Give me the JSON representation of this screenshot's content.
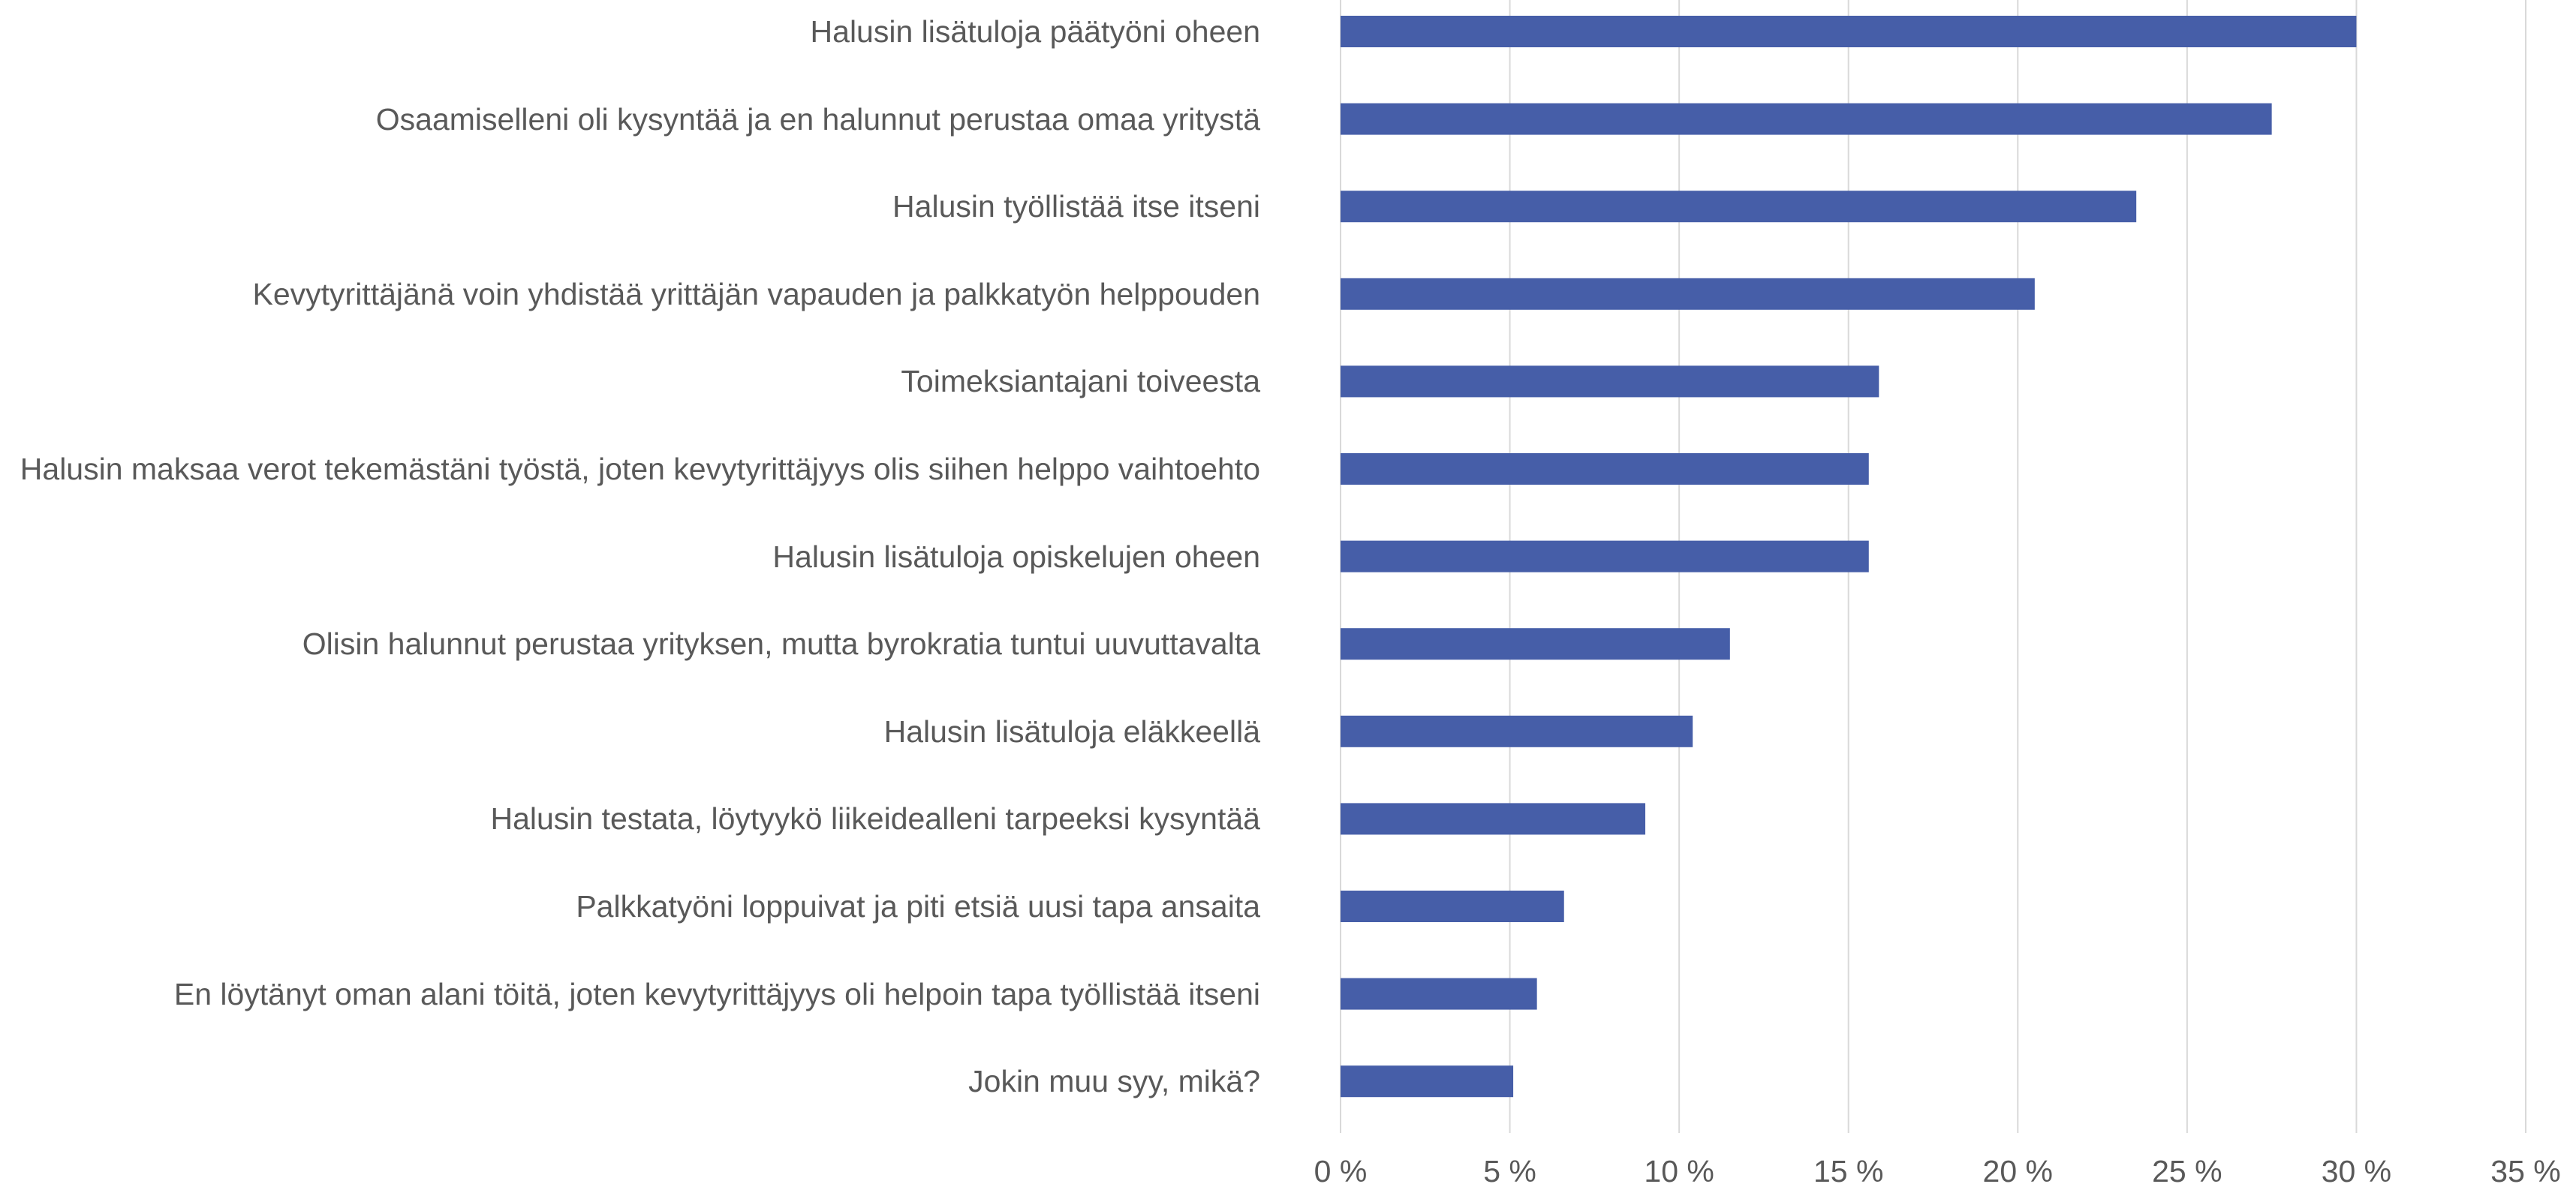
{
  "chart_data": {
    "type": "bar",
    "orientation": "horizontal",
    "categories": [
      "Halusin lisätuloja päätyöni oheen",
      "Osaamiselleni oli kysyntää ja en halunnut perustaa omaa yritystä",
      "Halusin työllistää itse itseni",
      "Kevytyrittäjänä voin yhdistää yrittäjän vapauden ja palkkatyön helppouden",
      "Toimeksiantajani toiveesta",
      "Halusin maksaa verot tekemästäni työstä, joten kevytyrittäjyys olis siihen helppo vaihtoehto",
      "Halusin lisätuloja opiskelujen oheen",
      "Olisin halunnut perustaa yrityksen, mutta byrokratia tuntui uuvuttavalta",
      "Halusin lisätuloja eläkkeellä",
      "Halusin testata, löytyykö liikeidealleni tarpeeksi kysyntää",
      "Palkkatyöni loppuivat ja piti etsiä uusi tapa ansaita",
      "En löytänyt oman alani töitä, joten kevytyrittäjyys oli helpoin tapa työllistää itseni",
      "Jokin muu syy, mikä?"
    ],
    "values": [
      30.0,
      27.5,
      23.5,
      20.5,
      15.9,
      15.6,
      15.6,
      11.5,
      10.4,
      9.0,
      6.6,
      5.8,
      5.1
    ],
    "color": "#465ea8",
    "xlim": [
      0,
      35
    ],
    "xticks": [
      {
        "value": 0,
        "label": "0 %"
      },
      {
        "value": 5,
        "label": "5 %"
      },
      {
        "value": 10,
        "label": "10 %"
      },
      {
        "value": 15,
        "label": "15 %"
      },
      {
        "value": 20,
        "label": "20 %"
      },
      {
        "value": 25,
        "label": "25 %"
      },
      {
        "value": 30,
        "label": "30 %"
      },
      {
        "value": 35,
        "label": "35 %"
      }
    ],
    "grid": true
  }
}
